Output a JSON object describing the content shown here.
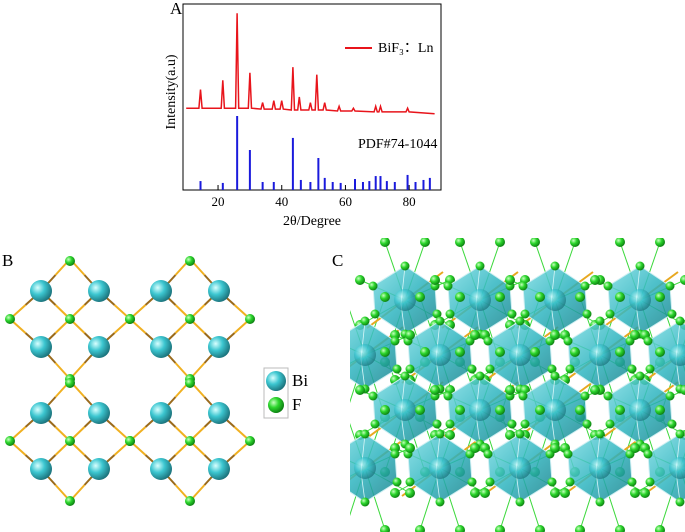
{
  "panels": {
    "a": "A",
    "b": "B",
    "c": "C"
  },
  "chart_data": {
    "type": "line",
    "x_label": "2θ/Degree",
    "y_label": "Intensity(a.u)",
    "xlim": [
      9,
      90
    ],
    "ylim": [
      0,
      100
    ],
    "xticks": [
      20,
      40,
      60,
      80
    ],
    "series": [
      {
        "name": "BiF₃：Ln",
        "color": "#e8141b",
        "x": [
          10,
          14,
          14.5,
          15,
          21,
          21.5,
          22,
          25.5,
          26,
          26.5,
          29.5,
          30,
          30.5,
          33.5,
          34,
          34.5,
          37,
          37.5,
          38,
          39.5,
          40,
          40.5,
          43,
          43.5,
          44,
          45,
          45.5,
          46,
          48.5,
          49,
          49.5,
          50.5,
          51,
          51.5,
          53,
          53.5,
          54,
          57.5,
          58,
          58.5,
          62,
          62.5,
          63,
          69,
          69.5,
          70,
          70.5,
          71,
          71.5,
          79,
          79.5,
          80,
          88
        ],
        "values": [
          44,
          44,
          54,
          44,
          44,
          59,
          44,
          44,
          95,
          44,
          44,
          63,
          44,
          43.5,
          47,
          43.5,
          43.5,
          48,
          43.5,
          43.5,
          48,
          43.5,
          43,
          66,
          43,
          43,
          50,
          43,
          43,
          47,
          43,
          43,
          62,
          43,
          43,
          47,
          43,
          42.5,
          45,
          42.5,
          42.5,
          44,
          42.5,
          42,
          45,
          42,
          42,
          45,
          42,
          42,
          44,
          42,
          41
        ]
      }
    ],
    "reference": {
      "label": "PDF#74-1044",
      "color": "#1a1adc",
      "x": [
        14.5,
        21.5,
        26,
        30,
        34,
        37.5,
        43.5,
        46,
        49,
        51.5,
        53.5,
        56,
        58.5,
        63,
        65.5,
        67.5,
        69.5,
        71,
        73,
        75.5,
        79.5,
        82,
        84.5,
        86.5
      ],
      "values": [
        4.8,
        3.8,
        39.8,
        21.5,
        4.3,
        4.3,
        28,
        5.4,
        4.3,
        17.2,
        6.5,
        4.3,
        3.8,
        5.9,
        4.3,
        4.8,
        7.5,
        7.5,
        4.8,
        4.3,
        8.1,
        4.3,
        5.4,
        6.5
      ]
    }
  },
  "legend": {
    "items": [
      "Bi",
      "F"
    ]
  }
}
